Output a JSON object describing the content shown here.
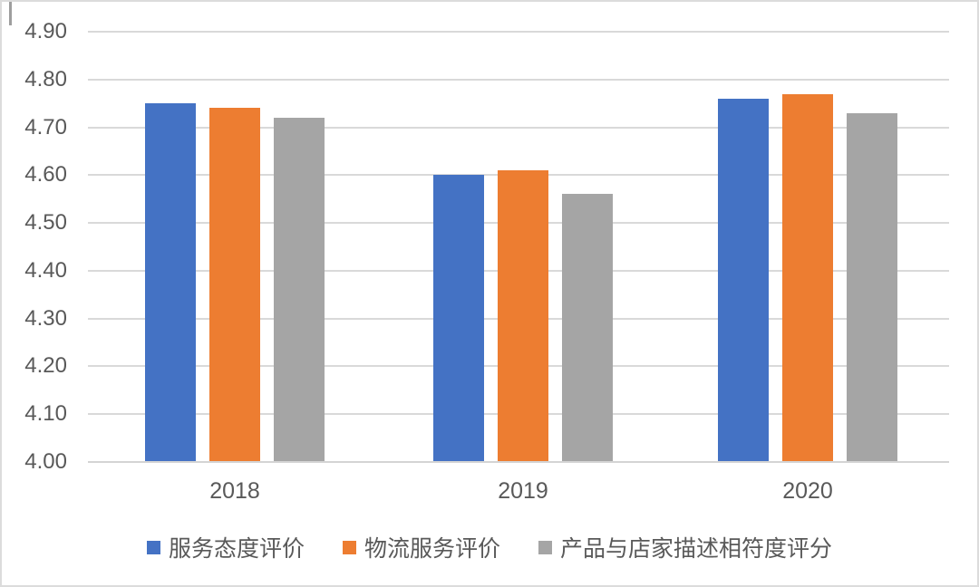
{
  "chart_data": {
    "type": "bar",
    "title": "",
    "xlabel": "",
    "ylabel": "",
    "categories": [
      "2018",
      "2019",
      "2020"
    ],
    "series": [
      {
        "name": "服务态度评价",
        "color": "#4472C4",
        "values": [
          4.75,
          4.6,
          4.76
        ]
      },
      {
        "name": "物流服务评价",
        "color": "#ED7D31",
        "values": [
          4.74,
          4.61,
          4.77
        ]
      },
      {
        "name": "产品与店家描述相符度评分",
        "color": "#A5A5A5",
        "values": [
          4.72,
          4.56,
          4.73
        ]
      }
    ],
    "ylim": [
      4.0,
      4.9
    ],
    "ytick_step": 0.1,
    "ytick_labels": [
      "4.00",
      "4.10",
      "4.20",
      "4.30",
      "4.40",
      "4.50",
      "4.60",
      "4.70",
      "4.80",
      "4.90"
    ],
    "grid": true,
    "legend_position": "bottom"
  },
  "colors": {
    "gridline": "#d9d9d9",
    "axis_text": "#595959",
    "frame_border": "#dcdcdc",
    "background": "#ffffff"
  }
}
